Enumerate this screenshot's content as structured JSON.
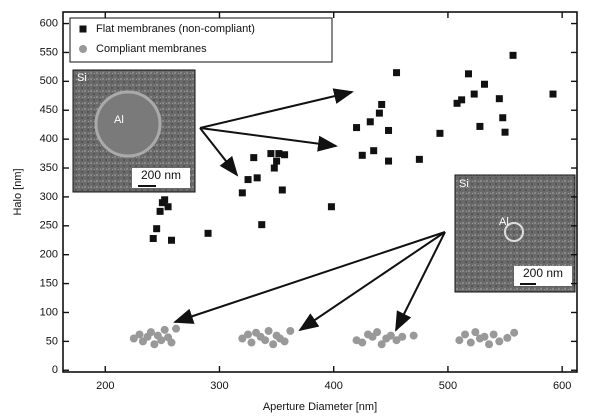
{
  "chart_data": {
    "type": "scatter",
    "xlabel": "Aperture Diameter [nm]",
    "ylabel": "Halo [nm]",
    "xlim": [
      163,
      613
    ],
    "ylim": [
      -3,
      620
    ],
    "xticks": [
      200,
      300,
      400,
      500,
      600
    ],
    "yticks": [
      0,
      50,
      100,
      150,
      200,
      250,
      300,
      350,
      400,
      450,
      500,
      550,
      600
    ],
    "legend": "upper left",
    "annotations": [
      "Si",
      "Al",
      "200 nm",
      "Si",
      "Al",
      "200 nm"
    ],
    "series": [
      {
        "name": "Flat membranes (non-compliant)",
        "color": "#111111",
        "marker": "square",
        "x": [
          242,
          245,
          248,
          250,
          252,
          255,
          258,
          290,
          320,
          325,
          330,
          333,
          337,
          345,
          348,
          350,
          352,
          355,
          357,
          398,
          420,
          425,
          432,
          435,
          440,
          442,
          448,
          448,
          455,
          475,
          493,
          508,
          512,
          518,
          523,
          528,
          532,
          545,
          548,
          550,
          557,
          592
        ],
        "values": [
          228,
          245,
          275,
          290,
          295,
          283,
          225,
          237,
          307,
          330,
          368,
          333,
          252,
          375,
          350,
          362,
          375,
          312,
          373,
          283,
          420,
          372,
          430,
          380,
          445,
          460,
          415,
          362,
          515,
          365,
          410,
          462,
          468,
          513,
          478,
          422,
          495,
          470,
          437,
          412,
          545,
          478
        ]
      },
      {
        "name": "Compliant membranes",
        "color": "#999999",
        "marker": "circle",
        "x": [
          225,
          230,
          233,
          237,
          240,
          243,
          246,
          249,
          252,
          255,
          258,
          262,
          320,
          325,
          328,
          332,
          336,
          340,
          343,
          347,
          350,
          353,
          357,
          362,
          420,
          425,
          430,
          434,
          438,
          442,
          446,
          450,
          455,
          460,
          470,
          510,
          515,
          520,
          524,
          528,
          532,
          536,
          540,
          545,
          552,
          558
        ],
        "values": [
          55,
          62,
          50,
          58,
          66,
          45,
          60,
          52,
          70,
          57,
          48,
          72,
          55,
          62,
          48,
          65,
          58,
          52,
          68,
          45,
          60,
          55,
          50,
          68,
          52,
          48,
          62,
          58,
          66,
          45,
          55,
          60,
          52,
          58,
          60,
          52,
          62,
          48,
          66,
          55,
          58,
          45,
          62,
          50,
          56,
          65
        ]
      }
    ]
  }
}
